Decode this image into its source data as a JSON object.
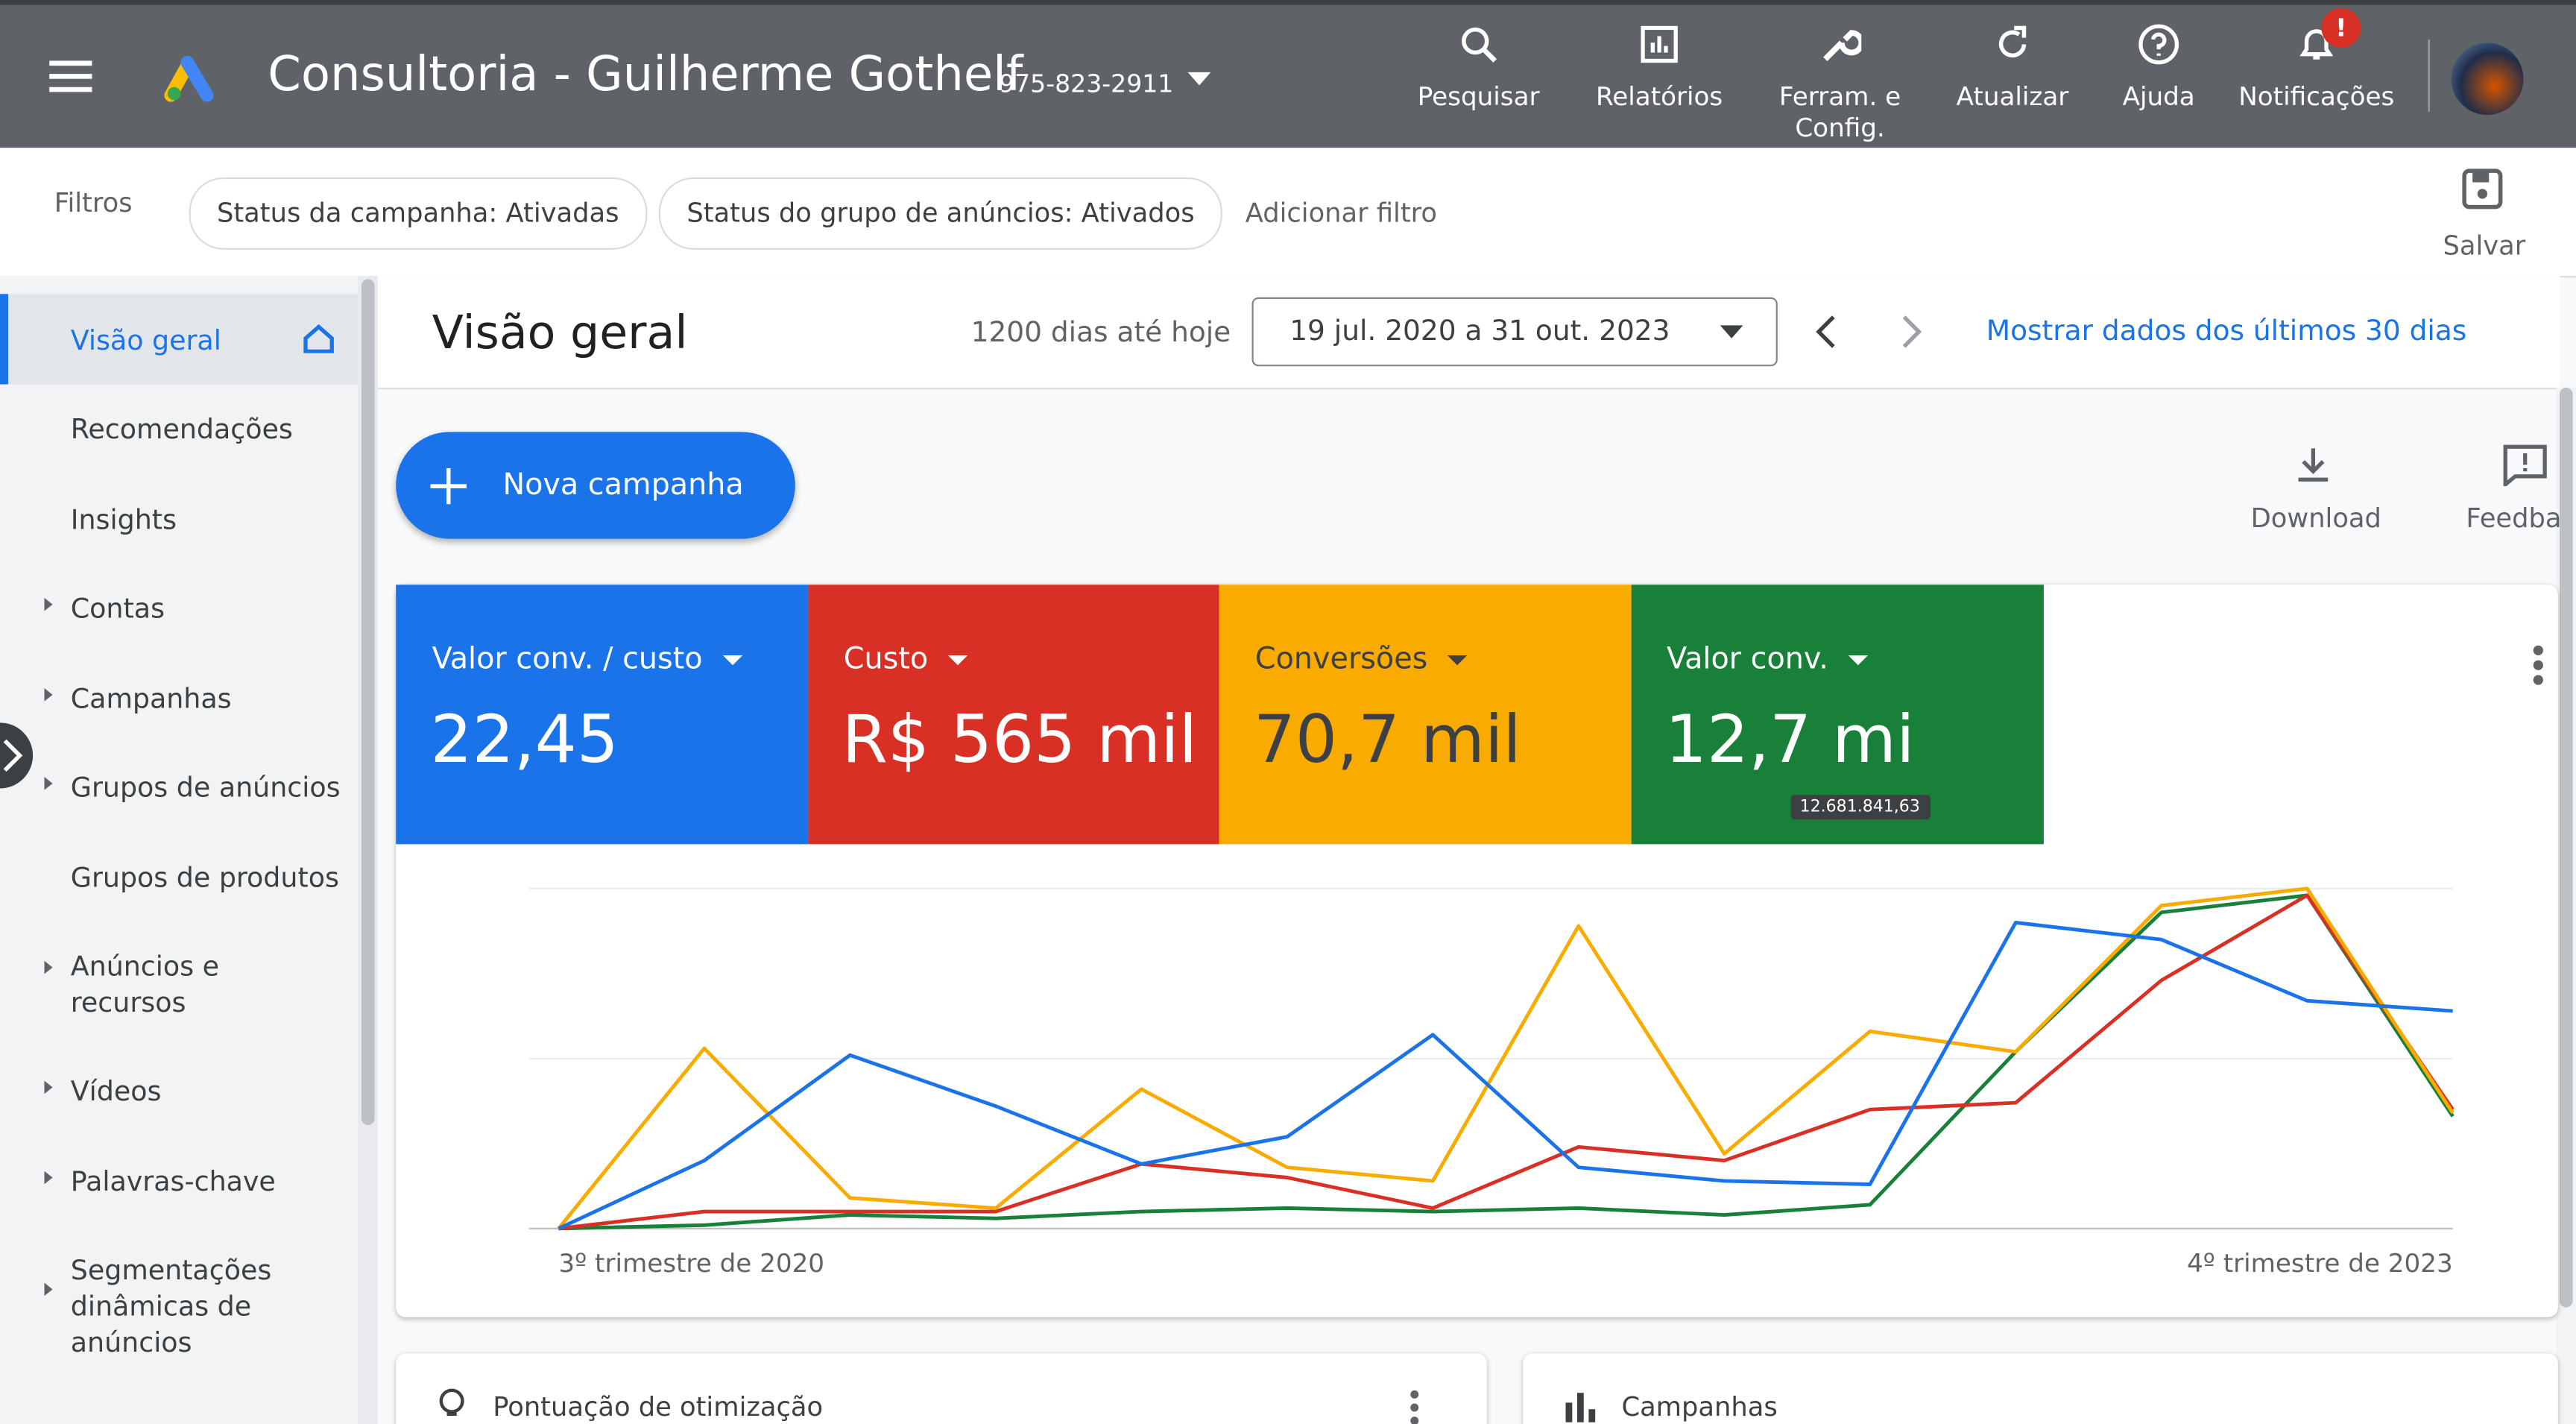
{
  "header": {
    "account_name": "Consultoria - Guilherme Gothelf",
    "account_id": "975-823-2911",
    "nav": [
      "Pesquisar",
      "Relatórios",
      "Ferram. e Config.",
      "Atualizar",
      "Ajuda",
      "Notificações"
    ],
    "notification_badge": "!"
  },
  "filters": {
    "label": "Filtros",
    "chips": [
      "Status da campanha: Ativadas",
      "Status do grupo de anúncios: Ativados"
    ],
    "add": "Adicionar filtro",
    "save": "Salvar"
  },
  "sidebar": [
    "Visão geral",
    "Recomendações",
    "Insights",
    "Contas",
    "Campanhas",
    "Grupos de anúncios",
    "Grupos de produtos",
    "Anúncios e recursos",
    "Vídeos",
    "Palavras-chave",
    "Segmentações dinâmicas de anúncios"
  ],
  "overview": {
    "title": "Visão geral",
    "range_hint": "1200 dias até hoje",
    "date_range": "19 jul. 2020 a 31 out. 2023",
    "last30": "Mostrar dados dos últimos 30 dias",
    "new_campaign": "Nova campanha",
    "download": "Download",
    "feedback": "Feedba"
  },
  "chart_data": {
    "type": "line",
    "grid": true,
    "ylim": [
      0,
      100
    ],
    "gridlines": [
      0,
      50,
      100
    ],
    "categories": [
      "3º trimestre de 2020",
      null,
      null,
      null,
      null,
      null,
      null,
      null,
      null,
      null,
      null,
      null,
      null,
      "4º trimestre de 2023"
    ],
    "series": [
      {
        "name": "Valor conv. / custo",
        "color": "#1a73e8",
        "summary": "22,45",
        "values": [
          0,
          20,
          51,
          36,
          19,
          27,
          57,
          18,
          14,
          13,
          90,
          85,
          67,
          64
        ]
      },
      {
        "name": "Custo",
        "color": "#d93025",
        "summary": "R$ 565 mil",
        "values": [
          0,
          5,
          5,
          5,
          19,
          15,
          6,
          24,
          20,
          35,
          37,
          73,
          98,
          35
        ]
      },
      {
        "name": "Conversões",
        "color": "#f9ab00",
        "summary": "70,7 mil",
        "values": [
          0,
          53,
          9,
          6,
          41,
          18,
          14,
          89,
          22,
          58,
          52,
          95,
          100,
          34
        ]
      },
      {
        "name": "Valor conv.",
        "color": "#188038",
        "summary": "12,7 mi",
        "tooltip": "12.681.841,63",
        "values": [
          0,
          1,
          4,
          3,
          5,
          6,
          5,
          6,
          4,
          7,
          52,
          93,
          98,
          33
        ]
      }
    ]
  },
  "cards": [
    "Pontuação de otimização",
    "Campanhas"
  ]
}
